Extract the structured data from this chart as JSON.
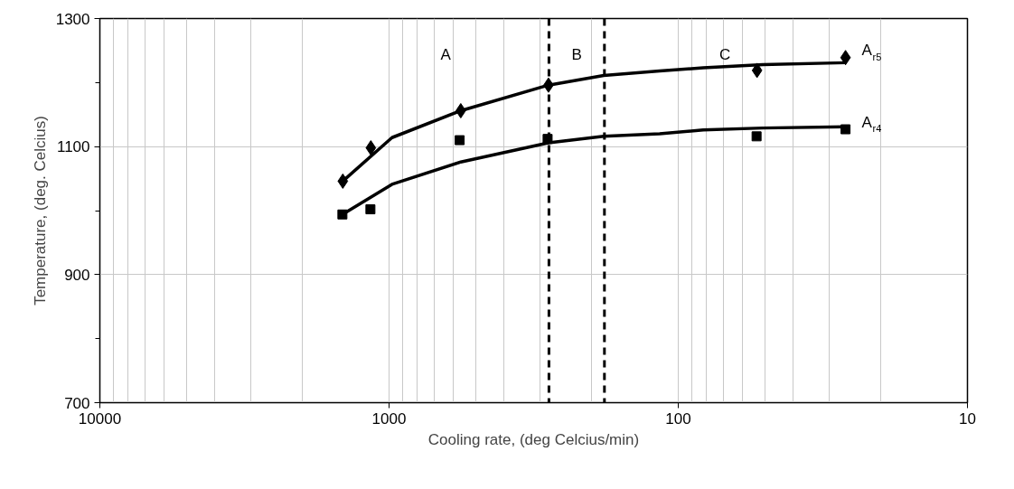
{
  "chart_data": {
    "type": "scatter",
    "xlabel": "Cooling rate, (deg Celcius/min)",
    "ylabel": "Temperature, (deg. Celcius)",
    "log": "x",
    "xlim": [
      10000,
      10
    ],
    "ylim": [
      700,
      1300
    ],
    "xticks": [
      10000,
      {
        "value": 9000,
        "label": null
      },
      {
        "value": 8000,
        "label": null
      },
      {
        "value": 7000,
        "label": null
      },
      {
        "value": 6000,
        "label": null
      },
      {
        "value": 5000,
        "label": null
      },
      {
        "value": 4000,
        "label": null
      },
      {
        "value": 3000,
        "label": null
      },
      {
        "value": 2000,
        "label": null
      },
      1000,
      {
        "value": 900,
        "label": null
      },
      {
        "value": 800,
        "label": null
      },
      {
        "value": 700,
        "label": null
      },
      {
        "value": 600,
        "label": null
      },
      {
        "value": 500,
        "label": null
      },
      {
        "value": 400,
        "label": null
      },
      {
        "value": 300,
        "label": null
      },
      {
        "value": 200,
        "label": null
      },
      100,
      {
        "value": 90,
        "label": null
      },
      {
        "value": 80,
        "label": null
      },
      {
        "value": 70,
        "label": null
      },
      {
        "value": 60,
        "label": null
      },
      {
        "value": 50,
        "label": null
      },
      {
        "value": 40,
        "label": null
      },
      {
        "value": 30,
        "label": null
      },
      {
        "value": 20,
        "label": null
      },
      10
    ],
    "yticks": [
      700,
      {
        "value": 800,
        "label": null
      },
      900,
      {
        "value": 1000,
        "label": null
      },
      1100,
      {
        "value": 1200,
        "label": null
      },
      1300
    ],
    "grid": true,
    "series": [
      {
        "type": "line",
        "color": "#000000",
        "line_style": "solid",
        "x": [
          1445,
          977,
          565,
          281,
          181,
          116,
          82,
          51,
          26.4
        ],
        "values": [
          1046,
          1114,
          1156,
          1196,
          1211,
          1218,
          1223,
          1228,
          1231
        ]
      },
      {
        "type": "line",
        "color": "#000000",
        "line_style": "solid",
        "x": [
          1450,
          977,
          565,
          281,
          181,
          116,
          82,
          51,
          26.4
        ],
        "values": [
          994,
          1041,
          1076,
          1106,
          1116,
          1120,
          1126,
          1129,
          1131
        ]
      },
      {
        "name": "A$_{r5}$",
        "color": "#000000",
        "marker": "diamond",
        "x": [
          1445,
          1156,
          565,
          281,
          53.4,
          26.4
        ],
        "values": [
          1046,
          1098,
          1156,
          1196,
          1219,
          1239
        ]
      },
      {
        "name": "A$_{r4}$",
        "color": "#000000",
        "marker": "square",
        "x": [
          1450,
          1160,
          570,
          283,
          53.6,
          26.4
        ],
        "values": [
          994,
          1002,
          1110,
          1112,
          1116,
          1127
        ]
      }
    ],
    "ref_lines": [
      {
        "axis": "x",
        "value": 280,
        "label": null,
        "color": "#000000",
        "line_style": "dashed"
      },
      {
        "axis": "x",
        "value": 180,
        "label": null,
        "color": "#000000",
        "line_style": "dashed"
      }
    ],
    "annotations": [
      "A",
      "B",
      "C"
    ]
  }
}
